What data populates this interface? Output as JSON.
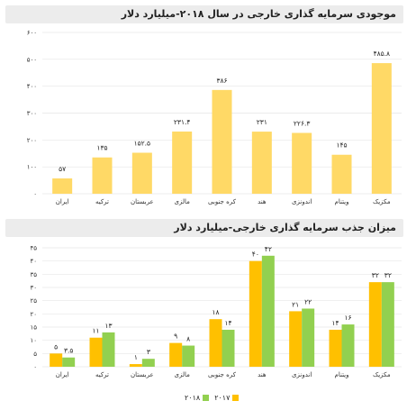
{
  "colors": {
    "yellow_light": "#ffd966",
    "yellow": "#ffc000",
    "green": "#92d050"
  },
  "chart_data": [
    {
      "type": "bar",
      "title": "موجودی سرمایه گذاری خارجی در سال ۲۰۱۸-میلیارد دلار",
      "categories": [
        "ایران",
        "ترکیه",
        "عربستان",
        "مالزی",
        "کره جنوبی",
        "هند",
        "اندونزی",
        "ویتنام",
        "مکزیک"
      ],
      "values": [
        57,
        135,
        152.5,
        231.4,
        386,
        231,
        226.3,
        145,
        485.8
      ],
      "value_labels": [
        "۵۷",
        "۱۳۵",
        "۱۵۲.۵",
        "۲۳۱.۴",
        "۳۸۶",
        "۲۳۱",
        "۲۲۶.۳",
        "۱۴۵",
        "۴۸۵.۸"
      ],
      "ylim": [
        0,
        600
      ],
      "ytick_values": [
        0,
        100,
        200,
        300,
        400,
        500,
        600
      ],
      "yticks": [
        "۰",
        "۱۰۰",
        "۲۰۰",
        "۳۰۰",
        "۴۰۰",
        "۵۰۰",
        "۶۰۰"
      ],
      "grid": true
    },
    {
      "type": "bar",
      "title": "میزان جذب سرمایه گذاری خارجی-میلیارد دلار",
      "categories": [
        "ایران",
        "ترکیه",
        "عربستان",
        "مالزی",
        "کره جنوبی",
        "هند",
        "اندونزی",
        "ویتنام",
        "مکزیک"
      ],
      "series": [
        {
          "name": "۲۰۱۷",
          "values": [
            5,
            11,
            1,
            9,
            18,
            40,
            21,
            14,
            32
          ],
          "value_labels": [
            "۵",
            "۱۱",
            "۱",
            "۹",
            "۱۸",
            "۴۰",
            "۲۱",
            "۱۴",
            "۳۲"
          ]
        },
        {
          "name": "۲۰۱۸",
          "values": [
            3.5,
            13,
            3,
            8,
            14,
            42,
            22,
            16,
            32
          ],
          "value_labels": [
            "۳.۵",
            "۱۳",
            "۳",
            "۸",
            "۱۴",
            "۴۲",
            "۲۲",
            "۱۶",
            "۳۲"
          ]
        }
      ],
      "ylim": [
        0,
        45
      ],
      "ytick_values": [
        0,
        5,
        10,
        15,
        20,
        25,
        30,
        35,
        40,
        45
      ],
      "yticks": [
        "۰",
        "۵",
        "۱۰",
        "۱۵",
        "۲۰",
        "۲۵",
        "۳۰",
        "۳۵",
        "۴۰",
        "۴۵"
      ],
      "grid": true,
      "legend": "bottom"
    }
  ]
}
